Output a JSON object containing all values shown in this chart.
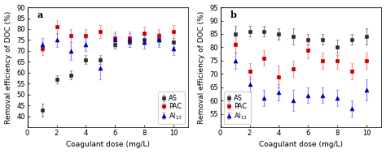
{
  "panel_a": {
    "x": [
      1,
      2,
      3,
      4,
      5,
      6,
      7,
      8,
      9,
      10
    ],
    "AS_y": [
      43,
      57,
      59,
      66,
      66,
      73,
      74,
      75,
      75,
      74
    ],
    "AS_yerr": [
      3,
      2,
      2,
      2,
      2,
      2,
      2,
      2,
      2,
      2
    ],
    "PAC_y": [
      71,
      81,
      77,
      77,
      79,
      76,
      76,
      78,
      77,
      79
    ],
    "PAC_yerr": [
      3,
      3,
      3,
      3,
      3,
      3,
      3,
      3,
      3,
      3
    ],
    "Al13_y": [
      73,
      75,
      70,
      73,
      62,
      75,
      75,
      74,
      75,
      71
    ],
    "Al13_yerr": [
      3,
      3,
      4,
      3,
      5,
      3,
      3,
      3,
      3,
      3
    ],
    "ylabel": "Removal efficiency of DOC (%)",
    "xlabel": "Coagulant dose (mg/L)",
    "ylim": [
      35,
      90
    ],
    "yticks": [
      40,
      45,
      50,
      55,
      60,
      65,
      70,
      75,
      80,
      85,
      90
    ],
    "label": "a",
    "legend_loc": "lower right"
  },
  "panel_b": {
    "x": [
      1,
      2,
      3,
      4,
      5,
      6,
      7,
      8,
      9,
      10
    ],
    "AS_y": [
      85,
      86,
      86,
      85,
      84,
      83,
      83,
      80,
      83,
      84
    ],
    "AS_yerr": [
      3,
      2,
      2,
      2,
      3,
      2,
      2,
      3,
      2,
      3
    ],
    "PAC_y": [
      81,
      71,
      76,
      69,
      72,
      79,
      75,
      75,
      71,
      75
    ],
    "PAC_yerr": [
      3,
      3,
      3,
      4,
      3,
      3,
      3,
      3,
      3,
      3
    ],
    "Al13_y": [
      75,
      66,
      61,
      63,
      60,
      62,
      62,
      61,
      57,
      64
    ],
    "Al13_yerr": [
      3,
      3,
      3,
      3,
      4,
      3,
      3,
      3,
      3,
      4
    ],
    "ylabel": "Removal efficiency of DOC (%)",
    "xlabel": "Coagulant dose (mg/L)",
    "ylim": [
      50,
      95
    ],
    "yticks": [
      55,
      60,
      65,
      70,
      75,
      80,
      85,
      90,
      95
    ],
    "label": "b",
    "legend_loc": "lower left"
  },
  "AS_color": "#333333",
  "PAC_color": "#cc0000",
  "Al13_color": "#0000bb",
  "AS_ecolor": "#888888",
  "PAC_ecolor": "#ff8888",
  "Al13_ecolor": "#8888ff",
  "marker_AS": "s",
  "marker_PAC": "s",
  "marker_Al13": "^",
  "markersize": 3.5,
  "capsize": 1.5,
  "fontsize": 6.5,
  "tick_fontsize": 6,
  "label_fontsize": 8
}
